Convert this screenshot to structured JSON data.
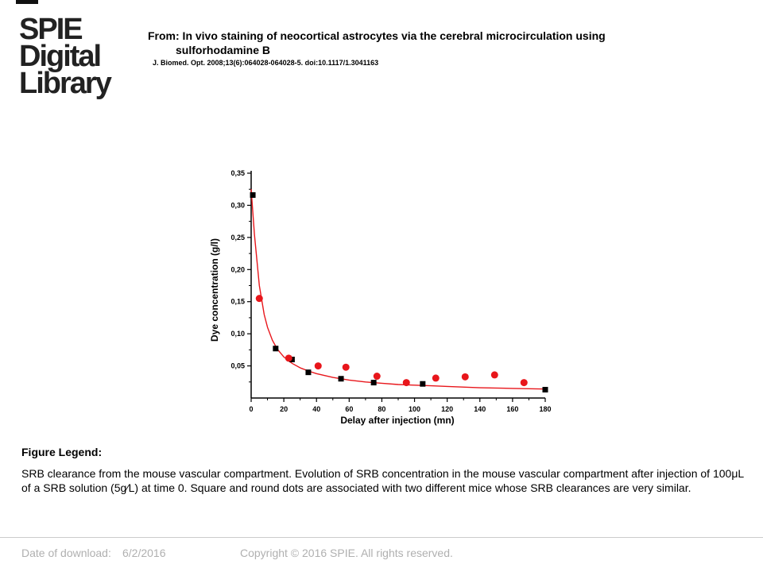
{
  "logo": {
    "lines": [
      "SPIE",
      "Digital",
      "Library"
    ]
  },
  "header": {
    "from_title_line1": "From: In vivo staining of neocortical astrocytes via the cerebral microcirculation using",
    "from_title_line2": "sulforhodamine B",
    "citation": "J. Biomed. Opt. 2008;13(6):064028-064028-5. doi:10.1117/1.3041163"
  },
  "chart_data": {
    "type": "scatter",
    "xlabel": "Delay after injection (mn)",
    "ylabel": "Dye concentration (g/l)",
    "xlim": [
      0,
      180
    ],
    "ylim": [
      0,
      0.35
    ],
    "x_ticks": [
      "0",
      "20",
      "40",
      "60",
      "80",
      "100",
      "120",
      "140",
      "160",
      "180"
    ],
    "y_ticks": [
      "0,05",
      "0,10",
      "0,15",
      "0,20",
      "0,25",
      "0,30",
      "0,35"
    ],
    "series": [
      {
        "marker": "square",
        "color": "#000000",
        "x": [
          1,
          15,
          25,
          35,
          55,
          75,
          105,
          180
        ],
        "y": [
          0.316,
          0.077,
          0.06,
          0.04,
          0.03,
          0.024,
          0.022,
          0.013
        ]
      },
      {
        "marker": "circle",
        "color": "#e8161b",
        "x": [
          5,
          23,
          41,
          58,
          77,
          95,
          113,
          131,
          149,
          167
        ],
        "y": [
          0.155,
          0.062,
          0.05,
          0.048,
          0.034,
          0.024,
          0.031,
          0.033,
          0.036,
          0.024
        ]
      }
    ],
    "fit_curve": {
      "color": "#e8161b",
      "x": [
        0,
        2,
        5,
        8,
        10,
        13,
        16,
        20,
        25,
        30,
        35,
        40,
        50,
        60,
        70,
        80,
        90,
        100,
        110,
        120,
        140,
        160,
        180
      ],
      "y": [
        0.325,
        0.255,
        0.175,
        0.13,
        0.11,
        0.09,
        0.076,
        0.064,
        0.054,
        0.047,
        0.042,
        0.038,
        0.032,
        0.028,
        0.025,
        0.023,
        0.021,
        0.02,
        0.019,
        0.018,
        0.016,
        0.015,
        0.014
      ]
    }
  },
  "legend": {
    "heading": "Figure Legend:",
    "text": "SRB clearance from the mouse vascular compartment. Evolution of SRB concentration in the mouse vascular compartment after injection of 100μL of a SRB solution (5g⁄L) at time 0. Square and round dots are associated with two different mice whose SRB clearances are very similar."
  },
  "footer": {
    "date_label": "Date of download:",
    "date_value": "6/2/2016",
    "copyright": "Copyright © 2016 SPIE. All rights reserved."
  }
}
